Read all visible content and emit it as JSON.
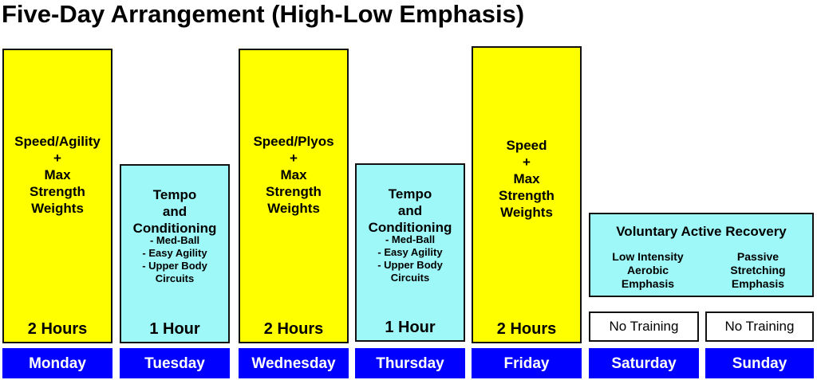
{
  "title": "Five-Day Arrangement (High-Low Emphasis)",
  "colors": {
    "high": "#ffff00",
    "low": "#9ff8f8",
    "day": "#0000ff"
  },
  "columns": [
    {
      "day": "Monday",
      "main": "Speed/Agility\n+\nMax\nStrength\nWeights",
      "sub": "",
      "duration": "2 Hours"
    },
    {
      "day": "Tuesday",
      "main": "Tempo\nand\nConditioning",
      "sub": "- Med-Ball\n- Easy Agility\n- Upper Body\nCircuits",
      "duration": "1 Hour"
    },
    {
      "day": "Wednesday",
      "main": "Speed/Plyos\n+\nMax\nStrength\nWeights",
      "sub": "",
      "duration": "2 Hours"
    },
    {
      "day": "Thursday",
      "main": "Tempo\nand\nConditioning",
      "sub": "- Med-Ball\n- Easy Agility\n- Upper Body\nCircuits",
      "duration": "1 Hour"
    },
    {
      "day": "Friday",
      "main": "Speed\n+\nMax\nStrength\nWeights",
      "sub": "",
      "duration": "2 Hours"
    },
    {
      "day": "Saturday",
      "no_training": "No Training"
    },
    {
      "day": "Sunday",
      "no_training": "No Training"
    }
  ],
  "recovery": {
    "title": "Voluntary Active Recovery",
    "left": "Low Intensity\nAerobic\nEmphasis",
    "right": "Passive\nStretching\nEmphasis"
  }
}
